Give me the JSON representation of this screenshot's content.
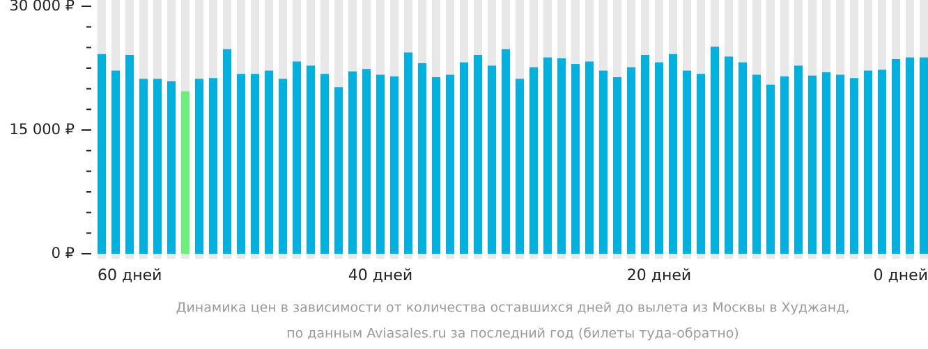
{
  "chart_data": {
    "type": "bar",
    "categories": [
      "60 дней",
      null,
      null,
      null,
      null,
      null,
      null,
      null,
      null,
      null,
      null,
      null,
      null,
      null,
      null,
      null,
      null,
      null,
      null,
      null,
      "40 дней",
      null,
      null,
      null,
      null,
      null,
      null,
      null,
      null,
      null,
      null,
      null,
      null,
      null,
      null,
      null,
      null,
      null,
      null,
      null,
      "20 дней",
      null,
      null,
      null,
      null,
      null,
      null,
      null,
      null,
      null,
      null,
      null,
      null,
      null,
      null,
      null,
      null,
      null,
      null,
      "0 дней"
    ],
    "values": [
      24200,
      22200,
      24100,
      21200,
      21200,
      20900,
      19700,
      21200,
      21300,
      24800,
      21800,
      21800,
      22200,
      21200,
      23300,
      22800,
      21800,
      20200,
      22100,
      22400,
      21700,
      21500,
      24400,
      23100,
      21400,
      21700,
      23200,
      24100,
      22800,
      24800,
      21200,
      22600,
      23800,
      23700,
      23000,
      23300,
      22200,
      21400,
      22600,
      24100,
      23200,
      24200,
      22200,
      21800,
      25100,
      23900,
      23200,
      21700,
      20500,
      21500,
      22800,
      21600,
      22000,
      21700,
      21300,
      22200,
      22300,
      23600,
      23800,
      23800
    ],
    "color": "#00b0dd",
    "highlight_index": 6,
    "highlight_color": "#6def7b",
    "background_color": "#e8e8e8",
    "ylim": [
      0,
      30000
    ],
    "yticks": [
      {
        "value": 0,
        "label": "0 ₽"
      },
      {
        "value": 15000,
        "label": "15 000 ₽"
      },
      {
        "value": 30000,
        "label": "30 000 ₽"
      }
    ],
    "minor_yticks": [
      2500,
      5000,
      7500,
      10000,
      12500,
      17500,
      20000,
      22500,
      25000,
      27500
    ],
    "caption": [
      "Динамика цен в зависимости от количества оставшихся дней до вылета из Москвы в Худжанд,",
      "по данным Aviasales.ru за последний год (билеты туда-обратно)"
    ]
  }
}
